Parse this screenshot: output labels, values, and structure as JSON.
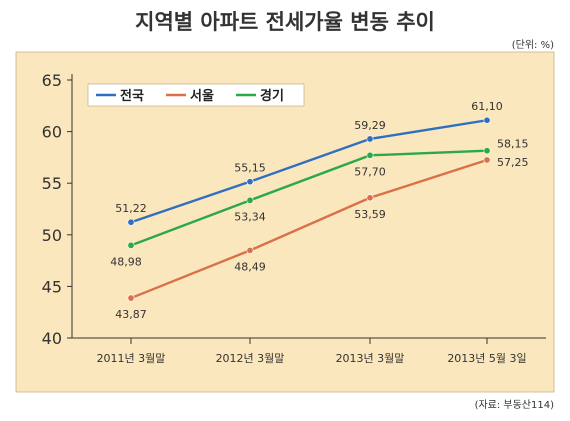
{
  "title": "지역별 아파트 전세가율 변동 추이",
  "unit_note": "(단위: %)",
  "source_note": "(자료: 부동산114)",
  "chart_data": {
    "type": "line",
    "categories": [
      "2011년 3월말",
      "2012년 3월말",
      "2013년 3월말",
      "2013년 5월 3일"
    ],
    "series": [
      {
        "name": "전국",
        "color": "#2f6fc0",
        "values": [
          51.22,
          55.15,
          59.29,
          61.1
        ],
        "labels": [
          "51,22",
          "55,15",
          "59,29",
          "61,10"
        ]
      },
      {
        "name": "서울",
        "color": "#d9704a",
        "values": [
          43.87,
          48.49,
          53.59,
          57.25
        ],
        "labels": [
          "43,87",
          "48,49",
          "53,59",
          "57,25"
        ]
      },
      {
        "name": "경기",
        "color": "#2aa84a",
        "values": [
          48.98,
          53.34,
          57.7,
          58.15
        ],
        "labels": [
          "48,98",
          "53,34",
          "57,70",
          "58,15"
        ]
      }
    ],
    "ylim": [
      40,
      65
    ],
    "yticks": [
      "40",
      "45",
      "50",
      "55",
      "60",
      "65"
    ],
    "legend_position": "top-left",
    "background": "#fbe7bd"
  }
}
